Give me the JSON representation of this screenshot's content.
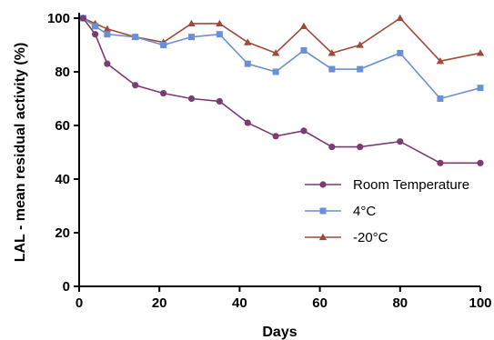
{
  "chart_data": {
    "type": "line",
    "xlabel": "Days",
    "ylabel": "LAL - mean residual activity (%)",
    "xlim": [
      0,
      100
    ],
    "ylim": [
      0,
      100
    ],
    "xticks": [
      0,
      20,
      40,
      60,
      80,
      100
    ],
    "yticks": [
      0,
      20,
      40,
      60,
      80,
      100
    ],
    "grid": false,
    "legend_position": "bottom-right",
    "series": [
      {
        "name": "Room Temperature",
        "color": "#7b3b73",
        "marker": "circle",
        "x": [
          1,
          4,
          7,
          14,
          21,
          28,
          35,
          42,
          49,
          56,
          63,
          70,
          80,
          90,
          100
        ],
        "y": [
          100,
          94,
          83,
          75,
          72,
          70,
          69,
          61,
          56,
          58,
          52,
          52,
          54,
          46,
          46
        ]
      },
      {
        "name": "4°C",
        "color": "#6b8fd6",
        "marker": "square",
        "x": [
          1,
          4,
          7,
          14,
          21,
          28,
          35,
          42,
          49,
          56,
          63,
          70,
          80,
          90,
          100
        ],
        "y": [
          100,
          97,
          94,
          93,
          90,
          93,
          94,
          83,
          80,
          88,
          81,
          81,
          87,
          70,
          74
        ]
      },
      {
        "name": "-20°C",
        "color": "#9c4a3a",
        "marker": "triangle",
        "x": [
          1,
          4,
          7,
          14,
          21,
          28,
          35,
          42,
          49,
          56,
          63,
          70,
          80,
          90,
          100
        ],
        "y": [
          100,
          98,
          96,
          93,
          91,
          98,
          98,
          91,
          87,
          97,
          87,
          90,
          100,
          84,
          87
        ]
      }
    ]
  }
}
